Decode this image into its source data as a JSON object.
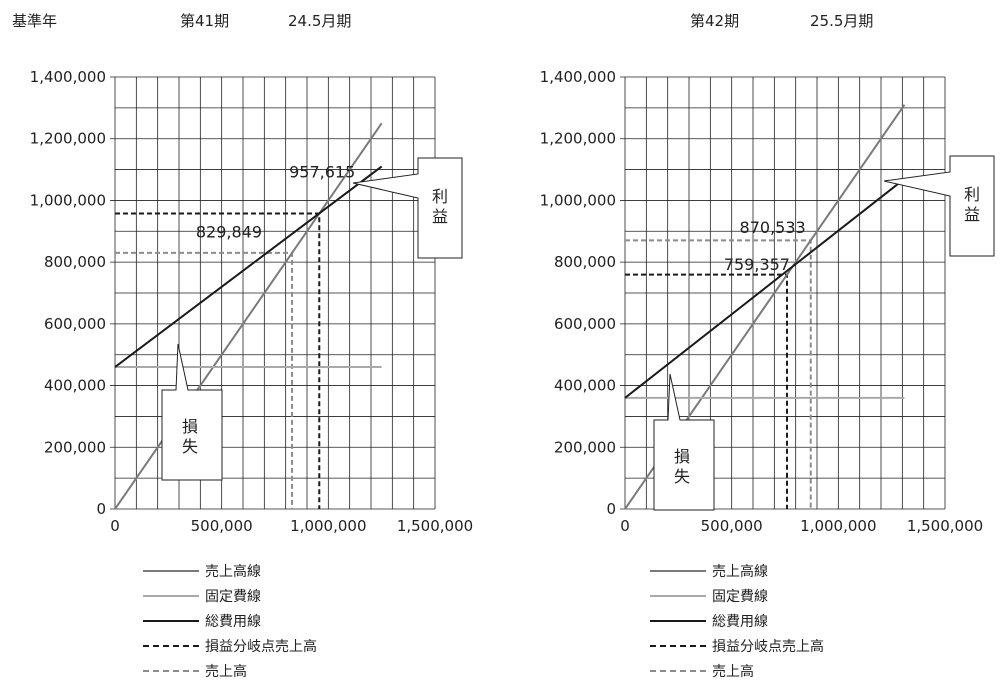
{
  "header": {
    "base_label": "基準年",
    "left_period": "第41期",
    "left_month": "24.5月期",
    "right_period": "第42期",
    "right_month": "25.5月期"
  },
  "colors": {
    "sales": "#7a7a7a",
    "fixed": "#a9a9a9",
    "total": "#1a1a1a",
    "be_sales": "#1a1a1a",
    "actual_sales": "#8c8c8c",
    "grid": "#222222"
  },
  "legend": [
    {
      "key": "sales",
      "label": "売上高線",
      "dash": false
    },
    {
      "key": "fixed",
      "label": "固定費線",
      "dash": false
    },
    {
      "key": "total",
      "label": "総費用線",
      "dash": false
    },
    {
      "key": "be_sales",
      "label": "損益分岐点売上高",
      "dash": true
    },
    {
      "key": "actual_sales",
      "label": "売上高",
      "dash": true
    }
  ],
  "chart_data": [
    {
      "type": "line",
      "period": "第41期",
      "xlim": [
        0,
        1500000
      ],
      "ylim": [
        0,
        1400000
      ],
      "x_ticks": [
        "0",
        "500,000",
        "1,000,000",
        "1,500,000"
      ],
      "y_ticks": [
        "0",
        "200,000",
        "400,000",
        "600,000",
        "800,000",
        "1,000,000",
        "1,200,000",
        "1,400,000"
      ],
      "grid": true,
      "series": [
        {
          "name": "売上高線",
          "key": "sales",
          "points": [
            [
              0,
              0
            ],
            [
              1250000,
              1250000
            ]
          ]
        },
        {
          "name": "固定費線",
          "key": "fixed",
          "points": [
            [
              0,
              460000
            ],
            [
              1250000,
              460000
            ]
          ]
        },
        {
          "name": "総費用線",
          "key": "total",
          "points": [
            [
              0,
              460000
            ],
            [
              1250000,
              1110000
            ]
          ]
        }
      ],
      "break_even": 957615,
      "actual_sales": 829849,
      "annotations": {
        "be": "957,615",
        "sales": "829,849"
      },
      "callouts": {
        "profit": [
          "利",
          "益"
        ],
        "loss": [
          "損",
          "失"
        ]
      }
    },
    {
      "type": "line",
      "period": "第42期",
      "xlim": [
        0,
        1500000
      ],
      "ylim": [
        0,
        1400000
      ],
      "x_ticks": [
        "0",
        "500,000",
        "1,000,000",
        "1,500,000"
      ],
      "y_ticks": [
        "0",
        "200,000",
        "400,000",
        "600,000",
        "800,000",
        "1,000,000",
        "1,200,000",
        "1,400,000"
      ],
      "grid": true,
      "series": [
        {
          "name": "売上高線",
          "key": "sales",
          "points": [
            [
              0,
              0
            ],
            [
              1310000,
              1310000
            ]
          ]
        },
        {
          "name": "固定費線",
          "key": "fixed",
          "points": [
            [
              0,
              360000
            ],
            [
              1310000,
              360000
            ]
          ]
        },
        {
          "name": "総費用線",
          "key": "total",
          "points": [
            [
              0,
              360000
            ],
            [
              1310000,
              1070000
            ]
          ]
        }
      ],
      "break_even": 759357,
      "actual_sales": 870533,
      "annotations": {
        "be": "759,357",
        "sales": "870,533"
      },
      "callouts": {
        "profit": [
          "利",
          "益"
        ],
        "loss": [
          "損",
          "失"
        ]
      }
    }
  ]
}
